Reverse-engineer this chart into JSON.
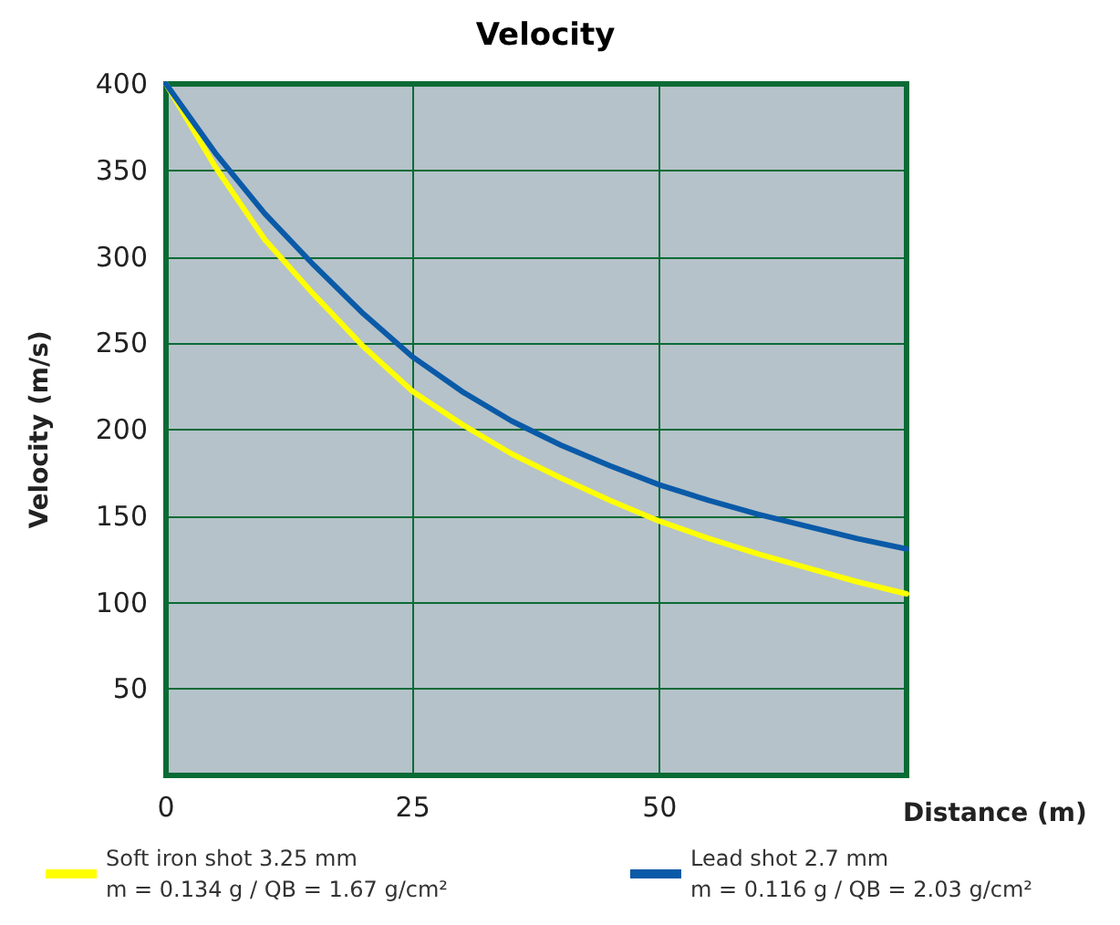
{
  "chart_data": {
    "type": "line",
    "title": "Velocity",
    "xlabel": "Distance (m)",
    "ylabel": "Velocity (m/s)",
    "xlim": [
      0,
      75
    ],
    "xticks": [
      0,
      25,
      50
    ],
    "ylim": [
      0,
      400
    ],
    "yticks": [
      50,
      100,
      150,
      200,
      250,
      300,
      350,
      400
    ],
    "x": [
      0,
      5,
      10,
      15,
      20,
      25,
      30,
      35,
      40,
      45,
      50,
      55,
      60,
      65,
      70,
      75
    ],
    "series": [
      {
        "name": "Soft iron shot 3.25 mm\nm = 0.134 g / QB = 1.67 g/cm²",
        "color": "#ffff00",
        "values": [
          400,
          352,
          310,
          278,
          248,
          222,
          203,
          186,
          172,
          159,
          147,
          137,
          128,
          120,
          112,
          105
        ]
      },
      {
        "name": "Lead shot 2.7 mm\nm = 0.116 g / QB = 2.03 g/cm²",
        "color": "#0a5aa8",
        "values": [
          400,
          360,
          325,
          295,
          267,
          242,
          222,
          205,
          191,
          179,
          168,
          159,
          151,
          144,
          137,
          131
        ]
      }
    ],
    "grid": true,
    "legend": "bottom",
    "marker": "none",
    "line_style": "solid"
  }
}
